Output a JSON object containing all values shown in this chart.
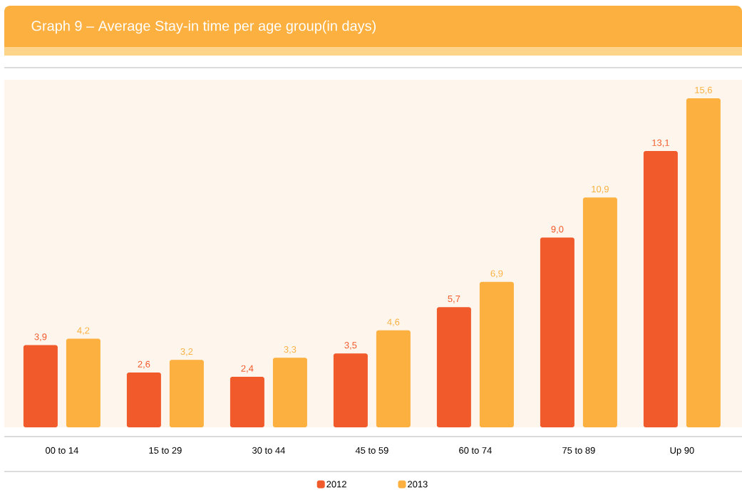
{
  "chart_data": {
    "type": "bar",
    "title": "Graph 9 – Average Stay-in time per age group(in days)",
    "categories": [
      "00 to 14",
      "15 to 29",
      "30 to 44",
      "45 to 59",
      "60 to 74",
      "75 to 89",
      "Up 90"
    ],
    "series": [
      {
        "name": "2012",
        "color": "#f15a2b",
        "values": [
          3.9,
          2.6,
          2.4,
          3.5,
          5.7,
          9.0,
          13.1
        ],
        "value_labels": [
          "3,9",
          "2,6",
          "2,4",
          "3,5",
          "5,7",
          "9,0",
          "13,1"
        ]
      },
      {
        "name": "2013",
        "color": "#fbb040",
        "values": [
          4.2,
          3.2,
          3.3,
          4.6,
          6.9,
          10.9,
          15.6
        ],
        "value_labels": [
          "4,2",
          "3,2",
          "3,3",
          "4,6",
          "6,9",
          "10,9",
          "15,6"
        ]
      }
    ],
    "legend": "bottom"
  }
}
